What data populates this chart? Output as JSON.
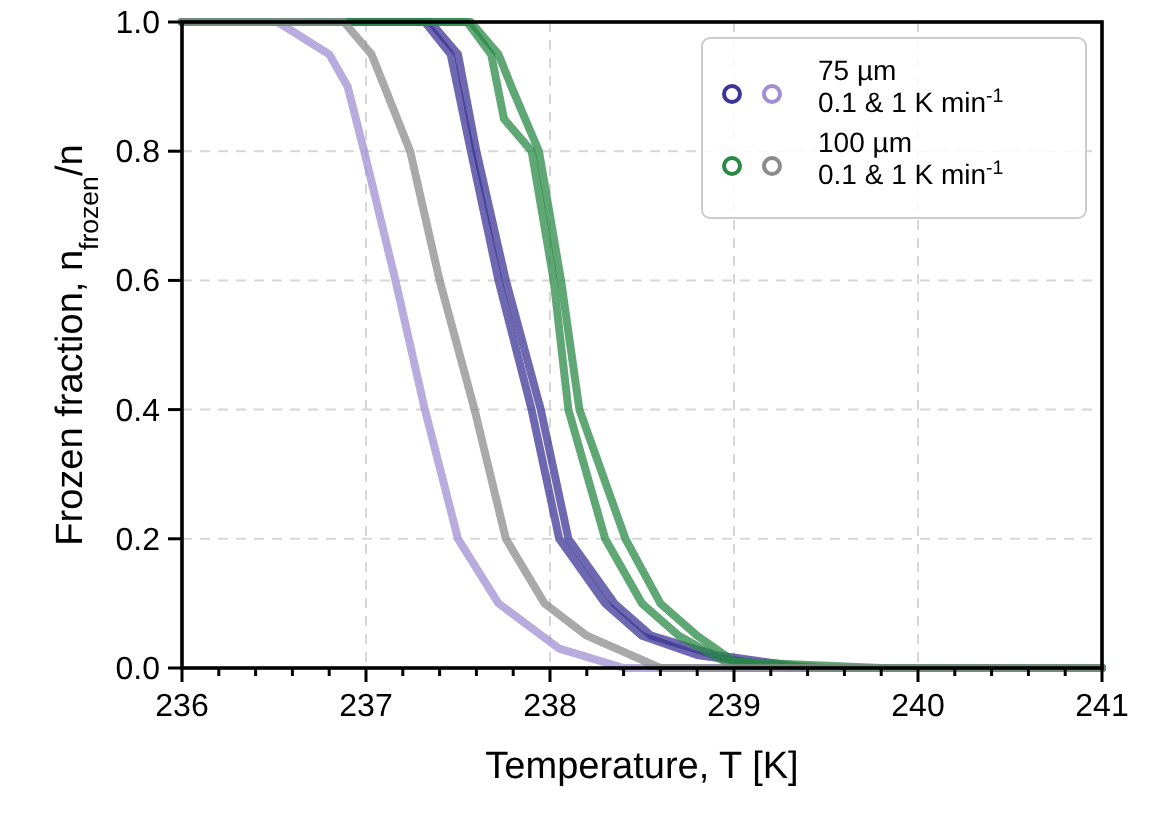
{
  "chart_data": {
    "type": "line",
    "xlabel": "Temperature, T [K]",
    "ylabel": "Frozen fraction, n$_{frozen}$/n",
    "xlim": [
      236,
      241
    ],
    "ylim": [
      0,
      1
    ],
    "xticks": [
      236,
      {
        "value": 236.2,
        "label": null
      },
      {
        "value": 236.4,
        "label": null
      },
      {
        "value": 236.6,
        "label": null
      },
      {
        "value": 236.8,
        "label": null
      },
      237,
      {
        "value": 237.2,
        "label": null
      },
      {
        "value": 237.4,
        "label": null
      },
      {
        "value": 237.6,
        "label": null
      },
      {
        "value": 237.8,
        "label": null
      },
      238,
      {
        "value": 238.2,
        "label": null
      },
      {
        "value": 238.4,
        "label": null
      },
      {
        "value": 238.6,
        "label": null
      },
      {
        "value": 238.8,
        "label": null
      },
      239,
      {
        "value": 239.2,
        "label": null
      },
      {
        "value": 239.4,
        "label": null
      },
      {
        "value": 239.6,
        "label": null
      },
      {
        "value": 239.8,
        "label": null
      },
      240,
      {
        "value": 240.2,
        "label": null
      },
      {
        "value": 240.4,
        "label": null
      },
      {
        "value": 240.6,
        "label": null
      },
      {
        "value": 240.8,
        "label": null
      },
      241
    ],
    "yticks": [
      {
        "value": 0,
        "label": "0.0"
      },
      {
        "value": 0.2,
        "label": "0.2"
      },
      {
        "value": 0.4,
        "label": "0.4"
      },
      {
        "value": 0.6,
        "label": "0.6"
      },
      {
        "value": 0.8,
        "label": "0.8"
      },
      {
        "value": 1.0,
        "label": "1.0"
      }
    ],
    "grid": true,
    "legend": "top right",
    "line_style": "solid",
    "series": [
      {
        "color": "#3d3596",
        "x": [
          236,
          237.32,
          237.46,
          237.57,
          237.72,
          237.9,
          238.05,
          238.3,
          238.5,
          238.8,
          239.3,
          241
        ],
        "values": [
          1,
          1,
          0.95,
          0.8,
          0.6,
          0.4,
          0.2,
          0.1,
          0.05,
          0.02,
          0,
          0
        ]
      },
      {
        "color": "#3d3596",
        "x": [
          236,
          237.35,
          237.5,
          237.6,
          237.76,
          237.95,
          238.1,
          238.35,
          238.55,
          238.9,
          239.4,
          241
        ],
        "values": [
          1,
          1,
          0.95,
          0.8,
          0.6,
          0.4,
          0.2,
          0.1,
          0.05,
          0.02,
          0,
          0
        ]
      },
      {
        "name": "75 µm\n0.1 & 1 K min$^{-1}$",
        "color": "#a08fd2",
        "x": [
          236,
          236.52,
          236.8,
          236.9,
          236.99,
          237.16,
          237.32,
          237.5,
          237.72,
          238.05,
          238.4,
          241
        ],
        "values": [
          1,
          1,
          0.95,
          0.9,
          0.8,
          0.6,
          0.4,
          0.2,
          0.1,
          0.03,
          0,
          0
        ]
      },
      {
        "color": "#2a8a45",
        "x": [
          236,
          237.57,
          237.72,
          237.79,
          237.94,
          238.06,
          238.16,
          238.41,
          238.6,
          238.8,
          239.0,
          239.5,
          241
        ],
        "values": [
          1,
          1,
          0.95,
          0.9,
          0.8,
          0.6,
          0.4,
          0.2,
          0.1,
          0.05,
          0.01,
          0,
          0
        ]
      },
      {
        "color": "#2a8a45",
        "x": [
          236,
          237.55,
          237.68,
          237.75,
          237.9,
          238.02,
          238.1,
          238.3,
          238.5,
          238.7,
          238.95,
          239.8,
          241
        ],
        "values": [
          1,
          1,
          0.95,
          0.85,
          0.8,
          0.6,
          0.4,
          0.2,
          0.1,
          0.05,
          0.01,
          0,
          0
        ]
      },
      {
        "name": "100 µm\n0.1 & 1 K min$^{-1}$",
        "color": "#8c8c8c",
        "x": [
          236,
          236.88,
          237.03,
          237.24,
          237.4,
          237.59,
          237.76,
          237.97,
          238.2,
          238.6,
          241
        ],
        "values": [
          1,
          1,
          0.95,
          0.8,
          0.6,
          0.4,
          0.2,
          0.1,
          0.05,
          0,
          0
        ]
      }
    ]
  }
}
